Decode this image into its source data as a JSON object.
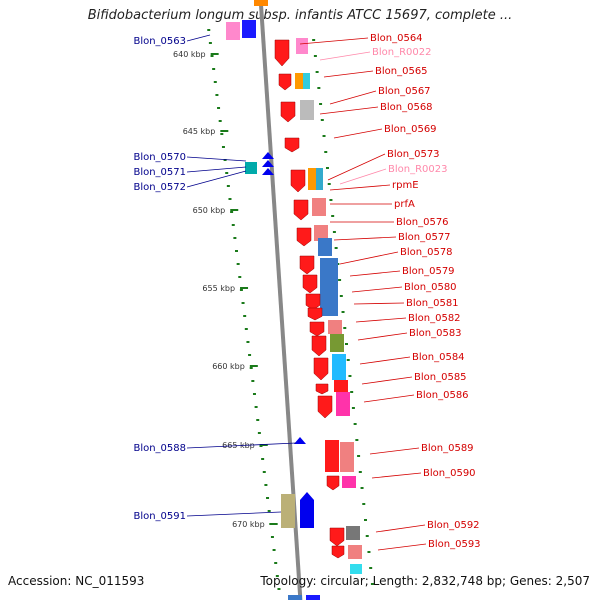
{
  "title": "Bifidobacterium longum subsp. infantis ATCC 15697, complete ...",
  "footer": {
    "accession": "Accession: NC_011593",
    "stats": "Topology: circular; Length: 2,832,748 bp; Genes: 2,507"
  },
  "colors": {
    "left_label": "#00008b",
    "right_label": "#d40000",
    "rna_label": "#ff88aa",
    "tick": "#1a7a1a",
    "backbone": "#888888"
  },
  "kbp_ticks": [
    "640 kbp",
    "645 kbp",
    "650 kbp",
    "655 kbp",
    "660 kbp",
    "665 kbp",
    "670 kbp"
  ],
  "left_labels": [
    "Blon_0563",
    "Blon_0570",
    "Blon_0571",
    "Blon_0572",
    "Blon_0588",
    "Blon_0591"
  ],
  "right_labels": [
    {
      "text": "Blon_0564",
      "kind": "gene"
    },
    {
      "text": "Blon_R0022",
      "kind": "rna"
    },
    {
      "text": "Blon_0565",
      "kind": "gene"
    },
    {
      "text": "Blon_0567",
      "kind": "gene"
    },
    {
      "text": "Blon_0568",
      "kind": "gene"
    },
    {
      "text": "Blon_0569",
      "kind": "gene"
    },
    {
      "text": "Blon_0573",
      "kind": "gene"
    },
    {
      "text": "Blon_R0023",
      "kind": "rna"
    },
    {
      "text": "rpmE",
      "kind": "gene"
    },
    {
      "text": "prfA",
      "kind": "gene"
    },
    {
      "text": "Blon_0576",
      "kind": "gene"
    },
    {
      "text": "Blon_0577",
      "kind": "gene"
    },
    {
      "text": "Blon_0578",
      "kind": "gene"
    },
    {
      "text": "Blon_0579",
      "kind": "gene"
    },
    {
      "text": "Blon_0580",
      "kind": "gene"
    },
    {
      "text": "Blon_0581",
      "kind": "gene"
    },
    {
      "text": "Blon_0582",
      "kind": "gene"
    },
    {
      "text": "Blon_0583",
      "kind": "gene"
    },
    {
      "text": "Blon_0584",
      "kind": "gene"
    },
    {
      "text": "Blon_0585",
      "kind": "gene"
    },
    {
      "text": "Blon_0586",
      "kind": "gene"
    },
    {
      "text": "Blon_0589",
      "kind": "gene"
    },
    {
      "text": "Blon_0590",
      "kind": "gene"
    },
    {
      "text": "Blon_0592",
      "kind": "gene"
    },
    {
      "text": "Blon_0593",
      "kind": "gene"
    }
  ]
}
